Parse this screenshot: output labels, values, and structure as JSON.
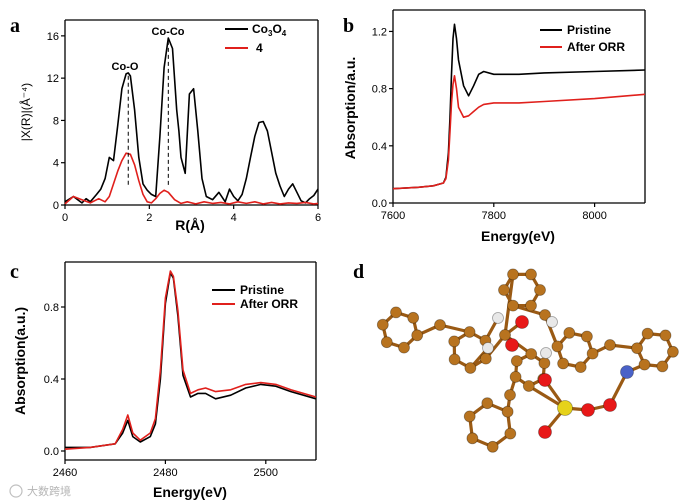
{
  "colors": {
    "black": "#000000",
    "red": "#e0201c",
    "carbon": "#b8731f",
    "oxygen": "#e81818",
    "hydrogen": "#e8e8e8",
    "sulfur": "#e6d21a",
    "nitrogen": "#4a62c8"
  },
  "watermark": "大数跨境",
  "chart_data": [
    {
      "panel": "a",
      "type": "line",
      "xlabel": "R(Å)",
      "ylabel": "|X(R)|(Å⁻⁴)",
      "xlim": [
        0,
        6
      ],
      "ylim": [
        0,
        17.5
      ],
      "xticks": [
        0,
        2,
        4,
        6
      ],
      "yticks": [
        0,
        4,
        8,
        12,
        16
      ],
      "legend": [
        "Co3O4",
        "4"
      ],
      "annotations": [
        {
          "text": "Co-O",
          "x": 1.5,
          "y": 12.6
        },
        {
          "text": "Co-Co",
          "x": 2.45,
          "y": 15.9
        }
      ],
      "series": [
        {
          "name": "Co3O4",
          "color": "#000000",
          "x": [
            0,
            0.2,
            0.4,
            0.5,
            0.6,
            0.75,
            0.85,
            0.95,
            1.05,
            1.15,
            1.25,
            1.35,
            1.45,
            1.5,
            1.55,
            1.65,
            1.75,
            1.85,
            1.95,
            2.05,
            2.15,
            2.25,
            2.35,
            2.45,
            2.55,
            2.65,
            2.7,
            2.75,
            2.85,
            2.95,
            3.05,
            3.15,
            3.25,
            3.35,
            3.5,
            3.65,
            3.8,
            3.9,
            4.0,
            4.1,
            4.2,
            4.3,
            4.4,
            4.5,
            4.6,
            4.7,
            4.8,
            4.9,
            5.0,
            5.1,
            5.2,
            5.3,
            5.4,
            5.5,
            5.6,
            5.7,
            5.8,
            5.9,
            6.0
          ],
          "y": [
            0.3,
            0.8,
            0.2,
            0.6,
            0.3,
            1.0,
            1.5,
            2.5,
            4.5,
            4.2,
            7.5,
            11.0,
            12.4,
            12.5,
            12.2,
            9.0,
            4.5,
            2.0,
            1.4,
            1.0,
            0.8,
            6.5,
            13.0,
            15.8,
            14.8,
            9.0,
            7.0,
            4.5,
            3.0,
            10.5,
            11.0,
            7.0,
            2.5,
            0.8,
            0.5,
            1.2,
            0.3,
            1.5,
            0.8,
            0.4,
            1.0,
            2.5,
            4.5,
            6.5,
            7.8,
            7.9,
            7.0,
            5.0,
            3.0,
            1.8,
            0.8,
            1.5,
            2.0,
            1.2,
            0.4,
            0.2,
            0.6,
            0.9,
            1.5
          ]
        },
        {
          "name": "4",
          "color": "#e0201c",
          "x": [
            0,
            0.2,
            0.4,
            0.6,
            0.8,
            0.95,
            1.05,
            1.15,
            1.25,
            1.35,
            1.45,
            1.55,
            1.65,
            1.75,
            1.85,
            1.95,
            2.05,
            2.15,
            2.25,
            2.35,
            2.45,
            2.6,
            2.75,
            2.9,
            3.1,
            3.3,
            3.5,
            3.7,
            3.9,
            4.1,
            4.3,
            4.5,
            4.7,
            4.9,
            5.1,
            5.3,
            5.5,
            5.7,
            5.9,
            6.0
          ],
          "y": [
            0.1,
            0.8,
            0.5,
            0.2,
            0.6,
            0.3,
            0.8,
            2.0,
            3.2,
            4.2,
            4.9,
            4.8,
            3.8,
            2.3,
            1.0,
            0.3,
            0.2,
            0.6,
            1.1,
            1.4,
            1.2,
            0.5,
            0.15,
            0.3,
            0.1,
            0.3,
            0.15,
            0.25,
            0.1,
            0.3,
            0.15,
            0.3,
            0.1,
            0.25,
            0.1,
            0.2,
            0.15,
            0.25,
            0.1,
            0.15
          ]
        }
      ]
    },
    {
      "panel": "b",
      "type": "line",
      "xlabel": "Energy(eV)",
      "ylabel": "Absorption/a.u.",
      "xlim": [
        7600,
        8100
      ],
      "ylim": [
        0,
        1.35
      ],
      "xticks": [
        7600,
        7800,
        8000
      ],
      "yticks": [
        0.0,
        0.4,
        0.8,
        1.2
      ],
      "ytick_labels": [
        "0.0",
        "0.4",
        "0.8",
        "1.2"
      ],
      "legend": [
        "Pristine",
        "After ORR"
      ],
      "series": [
        {
          "name": "Pristine",
          "color": "#000000",
          "x": [
            7600,
            7650,
            7680,
            7700,
            7705,
            7710,
            7713,
            7716,
            7719,
            7722,
            7726,
            7730,
            7740,
            7750,
            7760,
            7770,
            7780,
            7800,
            7850,
            7900,
            8000,
            8100
          ],
          "y": [
            0.1,
            0.11,
            0.12,
            0.14,
            0.18,
            0.35,
            0.6,
            0.9,
            1.15,
            1.25,
            1.15,
            1.0,
            0.82,
            0.75,
            0.82,
            0.9,
            0.92,
            0.9,
            0.9,
            0.91,
            0.92,
            0.93
          ]
        },
        {
          "name": "After ORR",
          "color": "#e0201c",
          "x": [
            7600,
            7650,
            7680,
            7700,
            7705,
            7710,
            7713,
            7716,
            7719,
            7722,
            7726,
            7730,
            7740,
            7750,
            7760,
            7770,
            7780,
            7800,
            7850,
            7900,
            8000,
            8100
          ],
          "y": [
            0.1,
            0.11,
            0.12,
            0.14,
            0.17,
            0.3,
            0.5,
            0.7,
            0.83,
            0.89,
            0.8,
            0.67,
            0.6,
            0.61,
            0.64,
            0.67,
            0.69,
            0.7,
            0.7,
            0.71,
            0.73,
            0.76
          ]
        }
      ]
    },
    {
      "panel": "c",
      "type": "line",
      "xlabel": "Energy(eV)",
      "ylabel": "Absorption(a.u.)",
      "xlim": [
        2460,
        2510
      ],
      "ylim": [
        -0.05,
        1.05
      ],
      "xticks": [
        2460,
        2480,
        2500
      ],
      "yticks": [
        0.0,
        0.4,
        0.8
      ],
      "ytick_labels": [
        "0.0",
        "0.4",
        "0.8"
      ],
      "legend": [
        "Pristine",
        "After ORR"
      ],
      "series": [
        {
          "name": "Pristine",
          "color": "#000000",
          "x": [
            2460,
            2465,
            2470,
            2471.5,
            2472.5,
            2473.5,
            2475,
            2477,
            2478,
            2479,
            2480,
            2481,
            2481.6,
            2482.5,
            2483.5,
            2485,
            2486.5,
            2488,
            2490,
            2493,
            2496,
            2499,
            2502,
            2505,
            2510
          ],
          "y": [
            0.02,
            0.02,
            0.04,
            0.1,
            0.17,
            0.08,
            0.05,
            0.08,
            0.15,
            0.4,
            0.82,
            0.99,
            0.96,
            0.75,
            0.42,
            0.3,
            0.32,
            0.32,
            0.29,
            0.31,
            0.35,
            0.37,
            0.36,
            0.33,
            0.29
          ]
        },
        {
          "name": "After ORR",
          "color": "#e0201c",
          "x": [
            2460,
            2465,
            2470,
            2471.5,
            2472.5,
            2473.5,
            2475,
            2477,
            2478,
            2479,
            2480,
            2481,
            2481.6,
            2482.5,
            2483.5,
            2485,
            2486.5,
            2488,
            2490,
            2493,
            2496,
            2499,
            2502,
            2505,
            2510
          ],
          "y": [
            0.01,
            0.02,
            0.04,
            0.12,
            0.2,
            0.1,
            0.06,
            0.1,
            0.18,
            0.45,
            0.85,
            1.0,
            0.97,
            0.78,
            0.45,
            0.32,
            0.34,
            0.35,
            0.33,
            0.34,
            0.37,
            0.38,
            0.37,
            0.34,
            0.3
          ]
        }
      ]
    }
  ],
  "panel_d": {
    "label": "d",
    "title": "molecular structure model"
  }
}
